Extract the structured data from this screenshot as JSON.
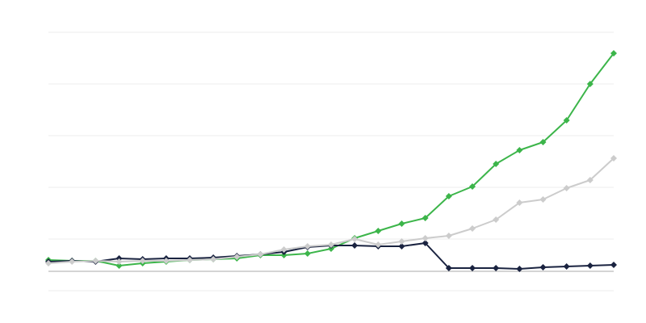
{
  "chart_data": {
    "type": "line",
    "title": "",
    "xlabel": "",
    "ylabel": "",
    "x": [
      1,
      2,
      3,
      4,
      5,
      6,
      7,
      8,
      9,
      10,
      11,
      12,
      13,
      14,
      15,
      16,
      17,
      18,
      19,
      20,
      21,
      22,
      23,
      24,
      25
    ],
    "ylim": [
      -24,
      296
    ],
    "gridlines": [
      -24,
      40,
      104,
      168,
      232,
      296
    ],
    "baseline": 0,
    "grid": true,
    "legend": "none",
    "series": [
      {
        "color": "#3cb54a",
        "values": [
          14,
          13,
          13,
          7,
          10,
          12,
          14,
          15,
          16,
          20,
          20,
          22,
          28,
          41,
          50,
          59,
          66,
          93,
          105,
          133,
          150,
          160,
          187,
          232,
          270
        ]
      },
      {
        "color": "#1a2340",
        "values": [
          12,
          13,
          12,
          16,
          15,
          16,
          16,
          17,
          19,
          21,
          24,
          30,
          32,
          32,
          31,
          31,
          35,
          4,
          4,
          4,
          3,
          5,
          6,
          7,
          8
        ]
      },
      {
        "color": "#cccccc",
        "values": [
          10,
          12,
          13,
          12,
          13,
          13,
          14,
          15,
          18,
          21,
          27,
          31,
          33,
          40,
          33,
          37,
          41,
          44,
          53,
          64,
          85,
          89,
          103,
          113,
          140
        ]
      }
    ]
  }
}
